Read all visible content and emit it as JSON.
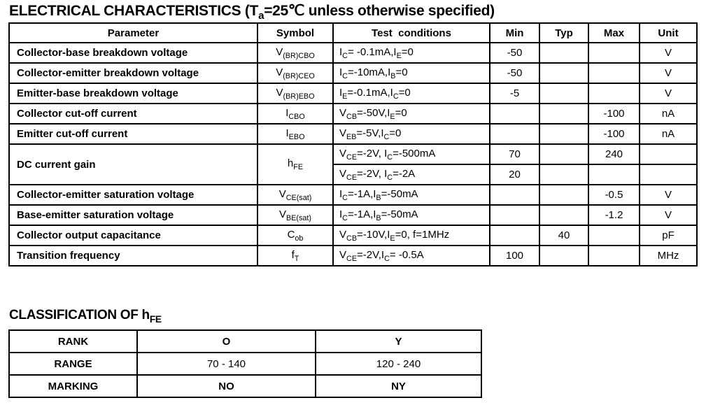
{
  "title": {
    "electrical_rich": "ELECTRICAL CHARACTERISTICS (T_{a}=25℃ unless otherwise specified)"
  },
  "electrical_table": {
    "headers": {
      "parameter": "Parameter",
      "symbol": "Symbol",
      "conditions": "Test  conditions",
      "min": "Min",
      "typ": "Typ",
      "max": "Max",
      "unit": "Unit"
    },
    "rows": [
      {
        "p": "Collector-base breakdown voltage",
        "s": "V_{(BR)CBO}",
        "c": "I_{C}= -0.1mA,I_{E}=0",
        "min": "-50",
        "typ": "",
        "max": "",
        "unit": "V"
      },
      {
        "p": "Collector-emitter breakdown voltage",
        "s": "V_{(BR)CEO}",
        "c": "I_{C}=-10mA,I_{B}=0",
        "min": "-50",
        "typ": "",
        "max": "",
        "unit": "V"
      },
      {
        "p": "Emitter-base breakdown voltage",
        "s": "V_{(BR)EBO}",
        "c": "I_{E}=-0.1mA,I_{C}=0",
        "min": "-5",
        "typ": "",
        "max": "",
        "unit": "V"
      },
      {
        "p": "Collector cut-off current",
        "s": "I_{CBO}",
        "c": "V_{CB}=-50V,I_{E}=0",
        "min": "",
        "typ": "",
        "max": "-100",
        "unit": "nA"
      },
      {
        "p": "Emitter cut-off current",
        "s": "I_{EBO}",
        "c": "V_{EB}=-5V,I_{C}=0",
        "min": "",
        "typ": "",
        "max": "-100",
        "unit": "nA"
      },
      {
        "p": "DC current gain",
        "s": "h_{FE}",
        "c": "V_{CE}=-2V, I_{C}=-500mA",
        "min": "70",
        "typ": "",
        "max": "240",
        "unit": ""
      },
      {
        "c": "V_{CE}=-2V, I_{C}=-2A",
        "min": "20",
        "typ": "",
        "max": "",
        "unit": ""
      },
      {
        "p": "Collector-emitter saturation voltage",
        "s": "V_{CE(sat)}",
        "c": "I_{C}=-1A,I_{B}=-50mA",
        "min": "",
        "typ": "",
        "max": "-0.5",
        "unit": "V"
      },
      {
        "p": "Base-emitter saturation voltage",
        "s": "V_{BE(sat)}",
        "c": "I_{C}=-1A,I_{B}=-50mA",
        "min": "",
        "typ": "",
        "max": "-1.2",
        "unit": "V"
      },
      {
        "p": "Collector output capacitance",
        "s": "C_{ob}",
        "c": "V_{CB}=-10V,I_{E}=0, f=1MHz",
        "min": "",
        "typ": "40",
        "max": "",
        "unit": "pF"
      },
      {
        "p": "Transition frequency",
        "s": "f_{T}",
        "c": "V_{CE}=-2V,I_{C}= -0.5A",
        "min": "100",
        "typ": "",
        "max": "",
        "unit": "MHz"
      }
    ]
  },
  "classification": {
    "heading_rich": "CLASSIFICATION OF h_{FE}",
    "rank": {
      "label": "RANK",
      "o": "O",
      "y": "Y"
    },
    "range": {
      "label": "RANGE",
      "o": "70 - 140",
      "y": "120 - 240"
    },
    "marking": {
      "label": "MARKING",
      "o": "NO",
      "y": "NY"
    }
  }
}
